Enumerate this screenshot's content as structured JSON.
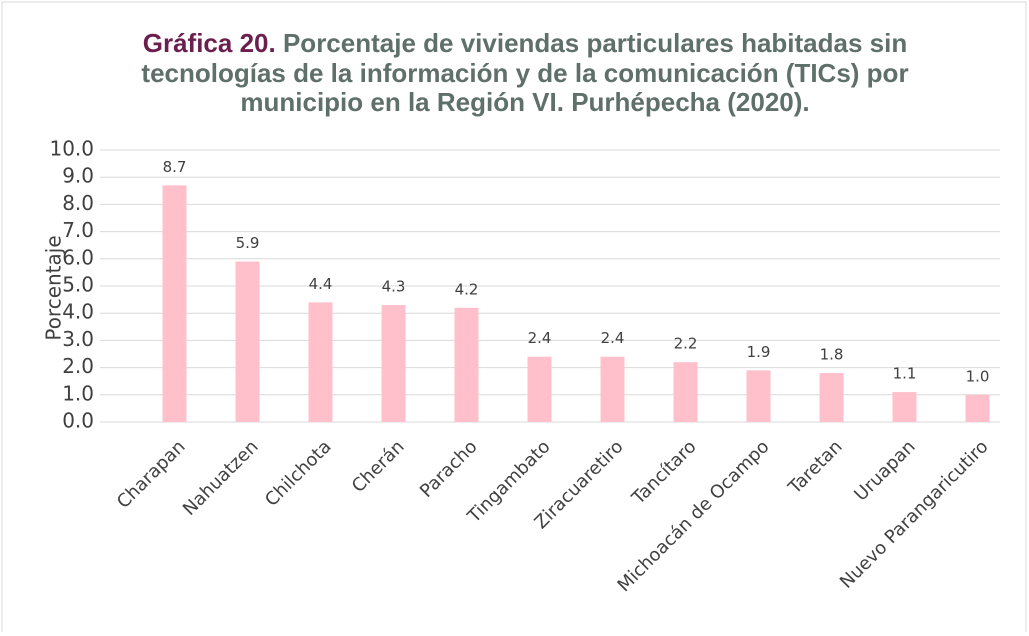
{
  "chart_data": {
    "type": "bar",
    "title_prefix": "Gráfica 20.",
    "title": [
      "Porcentaje de viviendas particulares habitadas sin",
      "tecnologías de la información y de la comunicación (TICs) por",
      "municipio en la Región VI. Purhépecha (2020)."
    ],
    "y_label": "Porcentaje",
    "categories": [
      "Charapan",
      "Nahuatzen",
      "Chilchota",
      "Cherán",
      "Paracho",
      "Tingambato",
      "Ziracuaretiro",
      "Tancítaro",
      "Michoacán de Ocampo",
      "Taretan",
      "Uruapan",
      "Nuevo Parangaricutiro"
    ],
    "values": [
      8.7,
      5.9,
      4.4,
      4.3,
      4.2,
      2.4,
      2.4,
      2.2,
      1.9,
      1.8,
      1.1,
      1.0
    ],
    "value_labels": [
      "8.7",
      "5.9",
      "4.4",
      "4.3",
      "4.2",
      "2.4",
      "2.4",
      "2.2",
      "1.9",
      "1.8",
      "1.1",
      "1.0"
    ],
    "color": "#ffc0cb",
    "ylim": [
      0,
      10
    ],
    "yticks": [
      {
        "value": 0,
        "label": "0.0"
      },
      {
        "value": 1,
        "label": "1.0"
      },
      {
        "value": 2,
        "label": "2.0"
      },
      {
        "value": 3,
        "label": "3.0"
      },
      {
        "value": 4,
        "label": "4.0"
      },
      {
        "value": 5,
        "label": "5.0"
      },
      {
        "value": 6,
        "label": "6.0"
      },
      {
        "value": 7,
        "label": "7.0"
      },
      {
        "value": 8,
        "label": "8.0"
      },
      {
        "value": 9,
        "label": "9.0"
      },
      {
        "value": 10,
        "label": "10.0"
      }
    ],
    "grid": true
  }
}
